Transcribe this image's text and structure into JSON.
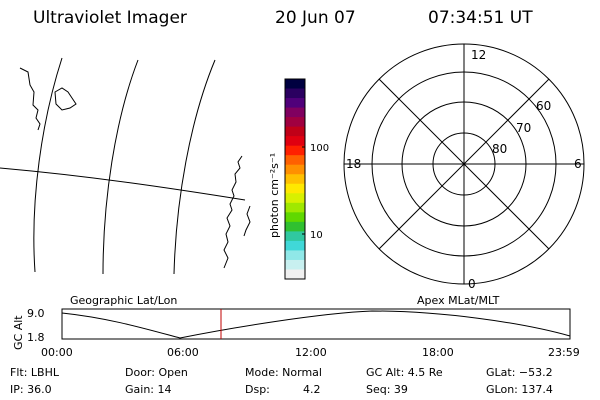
{
  "header": {
    "instrument": "Ultraviolet Imager",
    "date": "20 Jun 07",
    "time": "07:34:51 UT"
  },
  "colorbar": {
    "label": "photon cm⁻²s⁻¹",
    "ticks": [
      "100",
      "10"
    ],
    "colors": [
      "#000040",
      "#2a0060",
      "#50007a",
      "#800060",
      "#a00040",
      "#c00018",
      "#e00010",
      "#ff2000",
      "#ff6000",
      "#ff9000",
      "#ffc000",
      "#ffe800",
      "#d8f000",
      "#a0e800",
      "#60d800",
      "#30c030",
      "#30c8a0",
      "#40d8d8",
      "#90e8e8",
      "#c8f0f0",
      "#f0f0f0"
    ]
  },
  "polar": {
    "labels": {
      "top": "12",
      "bottom": "0",
      "left": "18",
      "right": "6"
    },
    "lat_labels": [
      "60",
      "70",
      "80"
    ]
  },
  "timeline": {
    "left_label": "Geographic Lat/Lon",
    "right_label": "Apex MLat/MLT",
    "axis_title": "GC Alt",
    "y_ticks": [
      "9.0",
      "1.8"
    ],
    "x_ticks": [
      "00:00",
      "06:00",
      "12:00",
      "18:00",
      "23:59"
    ],
    "marker_color": "#c00000"
  },
  "info": {
    "flt": "Flt: LBHL",
    "ip": "IP: 36.0",
    "door": "Door: Open",
    "gain": "Gain: 14",
    "mode": "Mode: Normal",
    "dsp_label": "Dsp:",
    "dsp_value": "4.2",
    "gc_alt": "GC Alt: 4.5 Re",
    "seq": "Seq: 39",
    "glat": "GLat: −53.2",
    "glon": "GLon: 137.4"
  }
}
